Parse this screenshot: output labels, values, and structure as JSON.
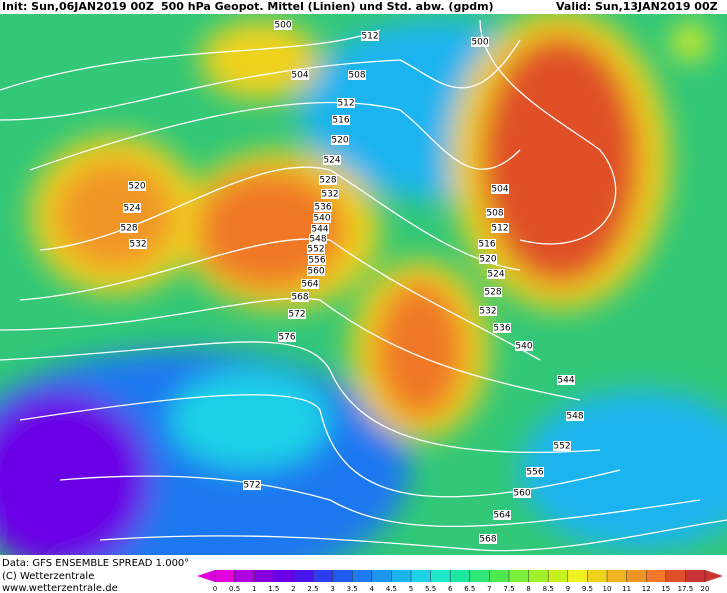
{
  "header": {
    "init": "Init: Sun,06JAN2019 00Z",
    "title": "500 hPa Geopot. Mittel (Linien) und Std. abw. (gpdm)",
    "valid": "Valid: Sun,13JAN2019 00Z"
  },
  "contours": [
    500,
    512,
    500,
    504,
    508,
    512,
    516,
    520,
    524,
    528,
    532,
    536,
    540,
    544,
    548,
    552,
    556,
    560,
    564,
    568,
    572,
    576,
    520,
    524,
    528,
    532,
    504,
    508,
    512,
    516,
    520,
    524,
    528,
    532,
    536,
    540,
    544,
    548,
    552,
    556,
    560,
    564,
    568,
    572
  ],
  "footer": {
    "data": "Data: GFS ENSEMBLE SPREAD 1.000°",
    "copyright": "(C) Wetterzentrale",
    "url": "www.wetterzentrale.de"
  },
  "legend": {
    "ticks": [
      0,
      0.5,
      1,
      1.5,
      2,
      2.5,
      3,
      3.5,
      4,
      4.5,
      5,
      5.5,
      6,
      6.5,
      7,
      7.5,
      8,
      8.5,
      9,
      9.5,
      10,
      11,
      12,
      15,
      17.5,
      20
    ],
    "colors": [
      "#e000e0",
      "#b000e0",
      "#8a00e0",
      "#6a00e6",
      "#4b14ee",
      "#2c3cf0",
      "#1e5af0",
      "#1e78f0",
      "#1e96f0",
      "#1eb4f0",
      "#1ed2e6",
      "#1ee6c8",
      "#1ee6a0",
      "#32e678",
      "#50e650",
      "#78f03c",
      "#a0f028",
      "#c8f01e",
      "#f0f01e",
      "#f0d21e",
      "#f0b41e",
      "#f09628",
      "#f07828",
      "#e05028",
      "#c83232"
    ]
  }
}
